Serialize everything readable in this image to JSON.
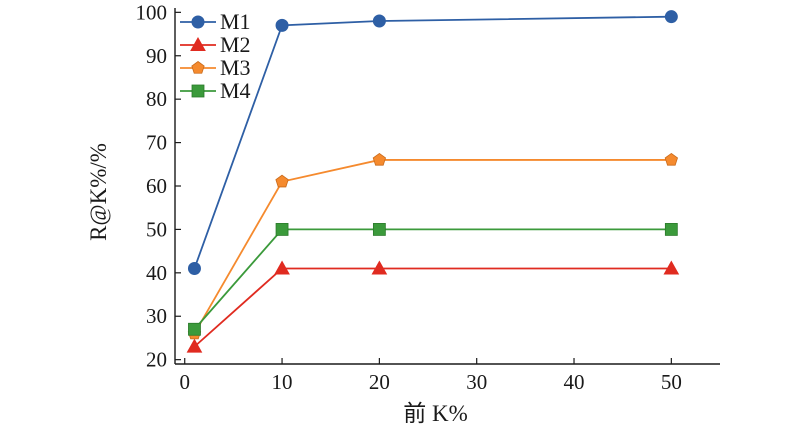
{
  "chart_data": {
    "type": "line",
    "xlabel": "前 K%",
    "ylabel": "R@K%/%",
    "x": [
      1,
      10,
      20,
      50
    ],
    "xlim": [
      -1,
      55
    ],
    "ylim": [
      19,
      101
    ],
    "xticks": [
      0,
      10,
      20,
      30,
      40,
      50
    ],
    "yticks": [
      20,
      30,
      40,
      50,
      60,
      70,
      80,
      90,
      100
    ],
    "grid": false,
    "legend_position": "top-left",
    "series": [
      {
        "name": "M1",
        "values": [
          41,
          97,
          98,
          99
        ],
        "color": "#2e5fa5",
        "marker": "circle"
      },
      {
        "name": "M2",
        "values": [
          23,
          41,
          41,
          41
        ],
        "color": "#e02b20",
        "marker": "triangle"
      },
      {
        "name": "M3",
        "values": [
          26,
          61,
          66,
          66
        ],
        "color": "#f58a2e",
        "marker": "pentagon"
      },
      {
        "name": "M4",
        "values": [
          27,
          50,
          50,
          50
        ],
        "color": "#3b9a3b",
        "marker": "square"
      }
    ]
  }
}
